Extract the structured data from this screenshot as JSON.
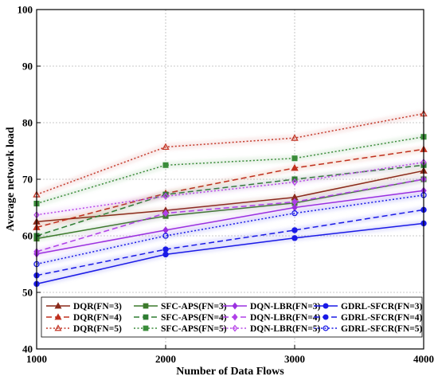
{
  "chart_data": {
    "type": "line",
    "title": "",
    "xlabel": "Number of Data Flows",
    "ylabel": "Average network load",
    "x": [
      1000,
      2000,
      3000,
      4000
    ],
    "xlim": [
      1000,
      4000
    ],
    "ylim": [
      40,
      100
    ],
    "xticks": [
      "1000",
      "2000",
      "3000",
      "4000"
    ],
    "yticks": [
      "40",
      "50",
      "60",
      "70",
      "80",
      "90",
      "100"
    ],
    "grid": true,
    "legend_position": "bottom",
    "series": [
      {
        "name": "DQR(FN=3)",
        "values": [
          62.5,
          64.5,
          66.8,
          71.5
        ],
        "color": "#8B2A1A",
        "dash": "solid",
        "marker": "triangle",
        "filled": true
      },
      {
        "name": "DQR(FN=4)",
        "values": [
          61.5,
          67.5,
          72.0,
          75.3
        ],
        "color": "#C0301E",
        "dash": "dashed",
        "marker": "triangle",
        "filled": true
      },
      {
        "name": "DQR(FN=5)",
        "values": [
          67.3,
          75.7,
          77.3,
          81.6
        ],
        "color": "#C43A2A",
        "dash": "dotted",
        "marker": "triangle",
        "filled": false
      },
      {
        "name": "SFC-APS(FN=3)",
        "values": [
          59.5,
          63.5,
          65.8,
          70.0
        ],
        "color": "#3C7A2B",
        "dash": "solid",
        "marker": "square",
        "filled": true
      },
      {
        "name": "SFC-APS(FN=4)",
        "values": [
          60.0,
          67.3,
          70.0,
          72.5
        ],
        "color": "#2E7D32",
        "dash": "dashed",
        "marker": "square",
        "filled": true
      },
      {
        "name": "SFC-APS(FN=5)",
        "values": [
          65.7,
          72.5,
          73.7,
          77.5
        ],
        "color": "#3A8C3A",
        "dash": "dotted",
        "marker": "square",
        "filled": true
      },
      {
        "name": "DQN-LBR(FN=3)",
        "values": [
          56.8,
          61.0,
          65.0,
          68.0
        ],
        "color": "#9B30E0",
        "dash": "solid",
        "marker": "diamond",
        "filled": true
      },
      {
        "name": "DQN-LBR(FN=4)",
        "values": [
          57.2,
          64.0,
          66.0,
          70.0
        ],
        "color": "#B040E8",
        "dash": "dashed",
        "marker": "diamond",
        "filled": true
      },
      {
        "name": "DQN-LBR(FN=5)",
        "values": [
          63.7,
          67.0,
          69.5,
          73.0
        ],
        "color": "#B848E8",
        "dash": "dotted",
        "marker": "diamond",
        "filled": false
      },
      {
        "name": "GDRL-SFCR(FN=3)",
        "values": [
          51.5,
          56.7,
          59.6,
          62.2
        ],
        "color": "#1A1AE6",
        "dash": "solid",
        "marker": "circle",
        "filled": true
      },
      {
        "name": "GDRL-SFCR(FN=4)",
        "values": [
          53.0,
          57.6,
          61.0,
          64.6
        ],
        "color": "#1A1AE6",
        "dash": "dashed",
        "marker": "circle",
        "filled": true
      },
      {
        "name": "GDRL-SFCR(FN=5)",
        "values": [
          55.0,
          60.0,
          64.0,
          67.2
        ],
        "color": "#1A1AE6",
        "dash": "dotted",
        "marker": "circle",
        "filled": false
      }
    ]
  }
}
